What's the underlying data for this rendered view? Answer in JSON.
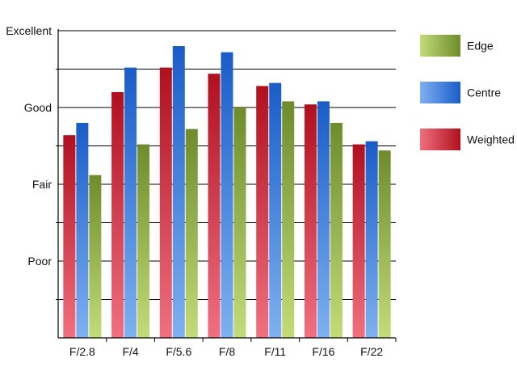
{
  "chart_data": {
    "type": "bar",
    "categories": [
      "F/2.8",
      "F/4",
      "F/5.6",
      "F/8",
      "F/11",
      "F/16",
      "F/22"
    ],
    "series": [
      {
        "name": "Weighted",
        "values": [
          66,
          80,
          88,
          86,
          82,
          76,
          63
        ],
        "color_top": "#b0101e",
        "color_bottom": "#f07080"
      },
      {
        "name": "Centre",
        "values": [
          70,
          88,
          95,
          93,
          83,
          77,
          64
        ],
        "color_top": "#1a5cc8",
        "color_bottom": "#7fb0f0"
      },
      {
        "name": "Edge",
        "values": [
          53,
          63,
          68,
          75,
          77,
          70,
          61
        ],
        "color_top": "#6e8c2c",
        "color_bottom": "#c2dc78"
      }
    ],
    "ylim": [
      0,
      100
    ],
    "y_ticks": [
      {
        "value": 25,
        "label": "Poor"
      },
      {
        "value": 50,
        "label": "Fair"
      },
      {
        "value": 75,
        "label": "Good"
      },
      {
        "value": 100,
        "label": "Excellent"
      }
    ],
    "grid": true,
    "legend_order": [
      "Edge",
      "Centre",
      "Weighted"
    ],
    "legend_position": "right",
    "title": "",
    "xlabel": "",
    "ylabel": ""
  }
}
